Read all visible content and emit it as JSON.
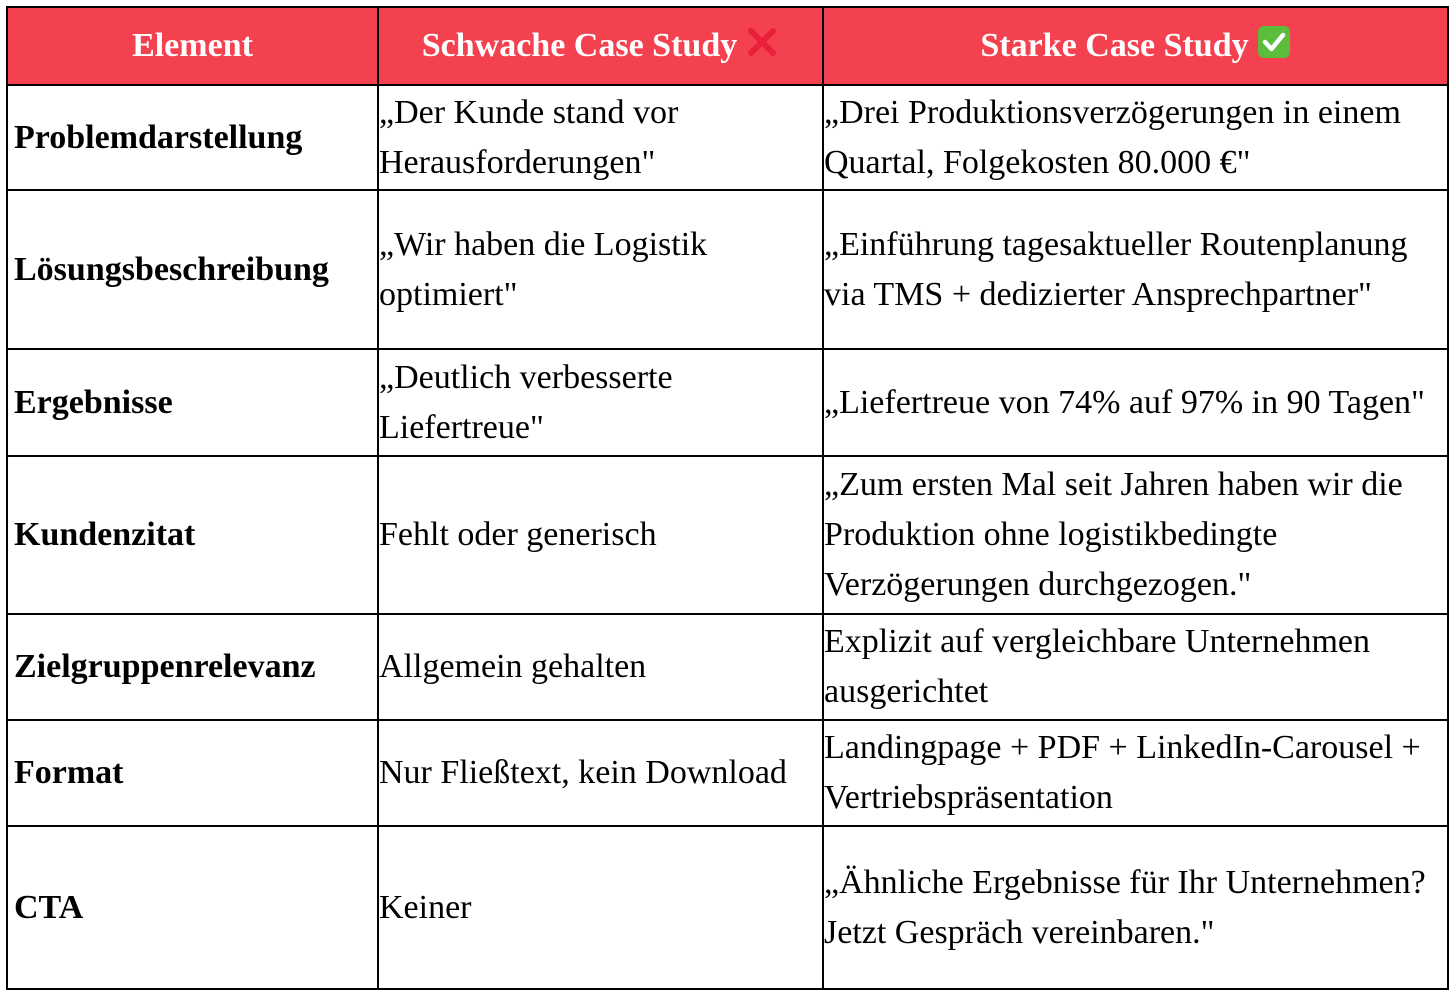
{
  "header": {
    "col_element": "Element",
    "col_weak": "Schwache Case Study",
    "col_strong": "Starke Case Study",
    "weak_icon": "cross-mark-icon",
    "strong_icon": "check-mark-button-icon",
    "header_bg": "#f4414f",
    "cross_color": "#e8203a",
    "check_color": "#5cbc3c"
  },
  "rows": [
    {
      "element": "Problemdarstellung",
      "weak": "„Der Kunde stand vor Herausforderungen\"",
      "strong": "„Drei Produktionsverzögerungen in einem Quartal, Folgekosten 80.000 €\""
    },
    {
      "element": "Lösungsbeschreibung",
      "weak": "„Wir haben die Logistik optimiert\"",
      "strong": "„Einführung tagesaktueller Routenplanung via TMS + dedizierter Ansprechpartner\""
    },
    {
      "element": "Ergebnisse",
      "weak": "„Deutlich verbesserte Liefertreue\"",
      "strong": "„Liefertreue von 74% auf 97% in 90 Tagen\""
    },
    {
      "element": "Kundenzitat",
      "weak": "Fehlt oder generisch",
      "strong": "„Zum ersten Mal seit Jahren haben wir die Produktion ohne logistikbedingte Verzögerungen durchgezogen.\""
    },
    {
      "element": "Zielgruppenrelevanz",
      "weak": "Allgemein gehalten",
      "strong": "Explizit auf vergleichbare Unternehmen ausgerichtet"
    },
    {
      "element": "Format",
      "weak": "Nur Fließtext, kein Download",
      "strong": "Landingpage + PDF + LinkedIn-Carousel + Vertriebspräsentation"
    },
    {
      "element": "CTA",
      "weak": "Keiner",
      "strong": "„Ähnliche Ergebnisse für Ihr Unternehmen? Jetzt Gespräch vereinbaren.\""
    }
  ]
}
